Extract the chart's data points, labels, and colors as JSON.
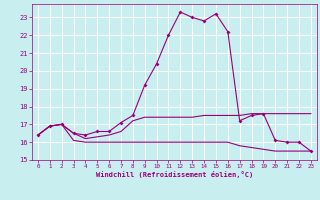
{
  "xlabel": "Windchill (Refroidissement éolien,°C)",
  "bg_color": "#c8eef0",
  "line_color": "#990077",
  "grid_color": "#ffffff",
  "text_color": "#990077",
  "xlim": [
    -0.5,
    23.5
  ],
  "ylim": [
    15,
    23.75
  ],
  "yticks": [
    15,
    16,
    17,
    18,
    19,
    20,
    21,
    22,
    23
  ],
  "xticks": [
    0,
    1,
    2,
    3,
    4,
    5,
    6,
    7,
    8,
    9,
    10,
    11,
    12,
    13,
    14,
    15,
    16,
    17,
    18,
    19,
    20,
    21,
    22,
    23
  ],
  "series": [
    {
      "x": [
        0,
        1,
        2,
        3,
        4,
        5,
        6,
        7,
        8,
        9,
        10,
        11,
        12,
        13,
        14,
        15,
        16,
        17,
        18,
        19,
        20,
        21,
        22,
        23
      ],
      "y": [
        16.4,
        16.9,
        17.0,
        16.5,
        16.4,
        16.6,
        16.6,
        17.1,
        17.5,
        19.2,
        20.4,
        22.0,
        23.3,
        23.0,
        22.8,
        23.2,
        22.2,
        17.2,
        17.5,
        17.6,
        16.1,
        16.0,
        16.0,
        15.5
      ],
      "has_markers": true
    },
    {
      "x": [
        0,
        1,
        2,
        3,
        4,
        5,
        6,
        7,
        8,
        9,
        10,
        11,
        12,
        13,
        14,
        15,
        16,
        17,
        18,
        19,
        20,
        21,
        22,
        23
      ],
      "y": [
        16.4,
        16.9,
        17.0,
        16.1,
        16.0,
        16.0,
        16.0,
        16.0,
        16.0,
        16.0,
        16.0,
        16.0,
        16.0,
        16.0,
        16.0,
        16.0,
        16.0,
        15.8,
        15.7,
        15.6,
        15.5,
        15.5,
        15.5,
        15.5
      ],
      "has_markers": false
    },
    {
      "x": [
        0,
        1,
        2,
        3,
        4,
        5,
        6,
        7,
        8,
        9,
        10,
        11,
        12,
        13,
        14,
        15,
        16,
        17,
        18,
        19,
        20,
        21,
        22,
        23
      ],
      "y": [
        16.4,
        16.9,
        17.0,
        16.5,
        16.2,
        16.3,
        16.4,
        16.6,
        17.2,
        17.4,
        17.4,
        17.4,
        17.4,
        17.4,
        17.5,
        17.5,
        17.5,
        17.5,
        17.6,
        17.6,
        17.6,
        17.6,
        17.6,
        17.6
      ],
      "has_markers": false
    }
  ],
  "figwidth": 3.2,
  "figheight": 2.0,
  "dpi": 100
}
